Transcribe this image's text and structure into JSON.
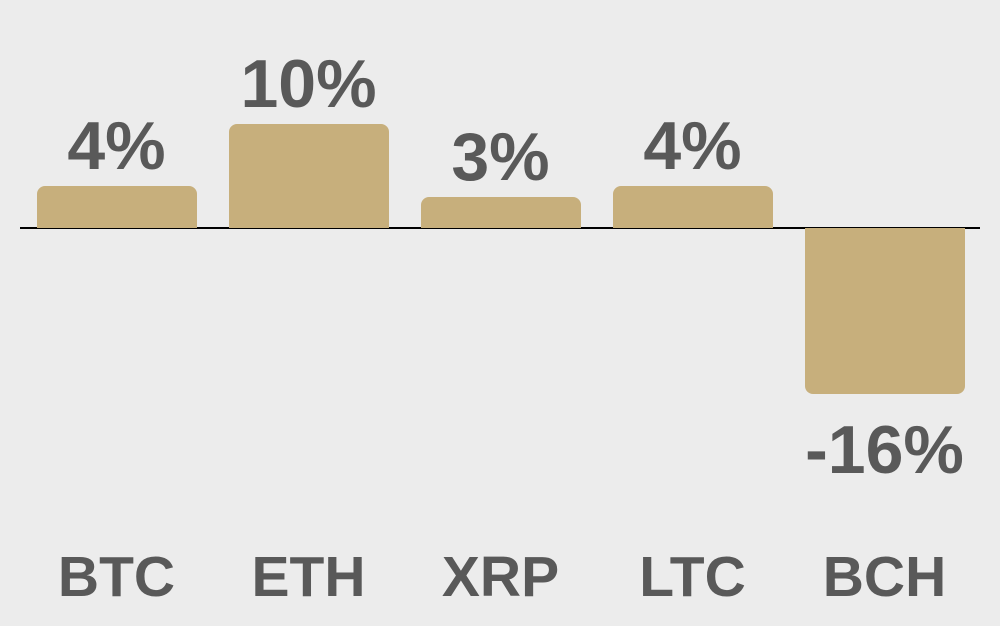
{
  "chart_data": {
    "type": "bar",
    "categories": [
      "BTC",
      "ETH",
      "XRP",
      "LTC",
      "BCH"
    ],
    "values": [
      4,
      10,
      3,
      4,
      -16
    ],
    "value_labels": [
      "4%",
      "10%",
      "3%",
      "4%",
      "-16%"
    ],
    "title": "",
    "xlabel": "",
    "ylabel": "",
    "ylim": [
      -16,
      10
    ],
    "grid": false,
    "legend": null,
    "colors": {
      "bar": "#c7af7c",
      "label_text": "#595959",
      "axis_line": "#000000",
      "background": "#ececec"
    }
  }
}
